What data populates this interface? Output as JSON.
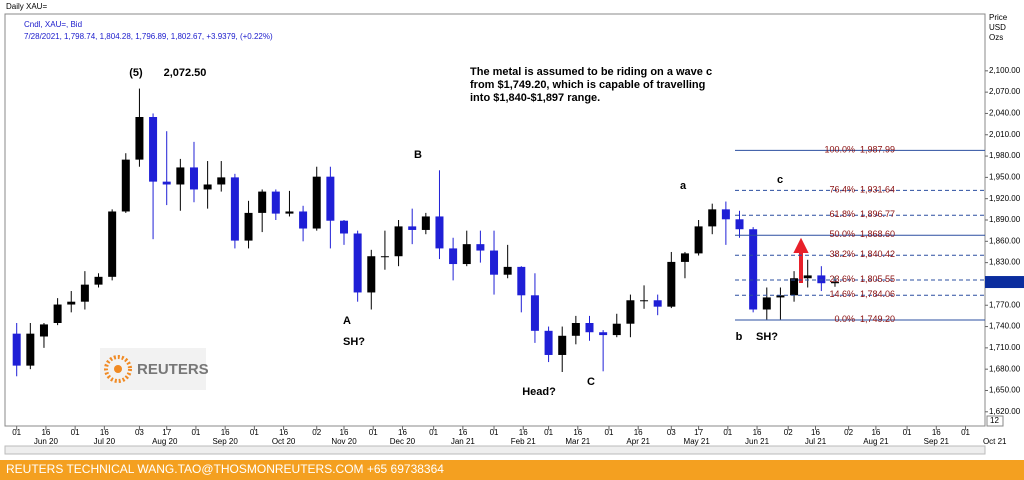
{
  "header": {
    "title": "Daily XAU=",
    "instrument": "Cndl, XAU=, Bid",
    "quote": "7/28/2021, 1,798.74, 1,804.28, 1,796.89, 1,802.67, +3.9379, (+0.22%)",
    "axis_title": [
      "Price",
      "USD",
      "Ozs"
    ],
    "axis_page": "12"
  },
  "footer": {
    "text": "REUTERS TECHNICAL  WANG.TAO@THOSMONREUTERS.COM  +65 69738364",
    "logo": "REUTERS"
  },
  "annotations": {
    "wave5": "(5)",
    "peak": "2,072.50",
    "B": "B",
    "A": "A",
    "sh1": "SH?",
    "head": "Head?",
    "C": "C",
    "a": "a",
    "c": "c",
    "b": "b",
    "sh2": "SH?",
    "note": [
      "The metal is assumed to be riding on a wave c",
      "from $1,749.20, which is capable of travelling",
      "into $1,840-$1,897 range."
    ]
  },
  "chart_data": {
    "type": "candlestick",
    "up_color": "#000000",
    "down_color": "#1f1fd6",
    "xlim": [
      "2020-05-26",
      "2021-10-11"
    ],
    "ylim": [
      1600,
      2180
    ],
    "yticks": [
      {
        "value": 1620,
        "label": "1,620.00"
      },
      {
        "value": 1650,
        "label": "1,650.00"
      },
      {
        "value": 1680,
        "label": "1,680.00"
      },
      {
        "value": 1710,
        "label": "1,710.00"
      },
      {
        "value": 1740,
        "label": "1,740.00"
      },
      {
        "value": 1770,
        "label": "1,770.00"
      },
      {
        "value": 1800,
        "label": "1,800.00"
      },
      {
        "value": 1830,
        "label": "1,830.00"
      },
      {
        "value": 1860,
        "label": "1,860.00"
      },
      {
        "value": 1890,
        "label": "1,890.00"
      },
      {
        "value": 1920,
        "label": "1,920.00"
      },
      {
        "value": 1950,
        "label": "1,950.00"
      },
      {
        "value": 1980,
        "label": "1,980.00"
      },
      {
        "value": 2010,
        "label": "2,010.00"
      },
      {
        "value": 2040,
        "label": "2,040.00"
      },
      {
        "value": 2070,
        "label": "2,070.00"
      },
      {
        "value": 2100,
        "label": "2,100.00"
      }
    ],
    "xticks": [
      {
        "value": "2020-06-01",
        "label": "01"
      },
      {
        "value": "2020-06-16",
        "label": "16"
      },
      {
        "value": "2020-07-01",
        "label": "01"
      },
      {
        "value": "2020-07-16",
        "label": "16"
      },
      {
        "value": "2020-08-03",
        "label": "03"
      },
      {
        "value": "2020-08-17",
        "label": "17"
      },
      {
        "value": "2020-09-01",
        "label": "01"
      },
      {
        "value": "2020-09-16",
        "label": "16"
      },
      {
        "value": "2020-10-01",
        "label": "01"
      },
      {
        "value": "2020-10-16",
        "label": "16"
      },
      {
        "value": "2020-11-02",
        "label": "02"
      },
      {
        "value": "2020-11-16",
        "label": "16"
      },
      {
        "value": "2020-12-01",
        "label": "01"
      },
      {
        "value": "2020-12-16",
        "label": "16"
      },
      {
        "value": "2021-01-01",
        "label": "01"
      },
      {
        "value": "2021-01-16",
        "label": "16"
      },
      {
        "value": "2021-02-01",
        "label": "01"
      },
      {
        "value": "2021-02-16",
        "label": "16"
      },
      {
        "value": "2021-03-01",
        "label": "01"
      },
      {
        "value": "2021-03-16",
        "label": "16"
      },
      {
        "value": "2021-04-01",
        "label": "01"
      },
      {
        "value": "2021-04-16",
        "label": "16"
      },
      {
        "value": "2021-05-03",
        "label": "03"
      },
      {
        "value": "2021-05-17",
        "label": "17"
      },
      {
        "value": "2021-06-01",
        "label": "01"
      },
      {
        "value": "2021-06-16",
        "label": "16"
      },
      {
        "value": "2021-07-02",
        "label": "02"
      },
      {
        "value": "2021-07-16",
        "label": "16"
      },
      {
        "value": "2021-08-02",
        "label": "02"
      },
      {
        "value": "2021-08-16",
        "label": "16"
      },
      {
        "value": "2021-09-01",
        "label": "01"
      },
      {
        "value": "2021-09-16",
        "label": "16"
      },
      {
        "value": "2021-10-01",
        "label": "01"
      }
    ],
    "xmonths": [
      {
        "value": "2020-06-16",
        "label": "Jun 20"
      },
      {
        "value": "2020-07-16",
        "label": "Jul 20"
      },
      {
        "value": "2020-08-16",
        "label": "Aug 20"
      },
      {
        "value": "2020-09-16",
        "label": "Sep 20"
      },
      {
        "value": "2020-10-16",
        "label": "Oct 20"
      },
      {
        "value": "2020-11-16",
        "label": "Nov 20"
      },
      {
        "value": "2020-12-16",
        "label": "Dec 20"
      },
      {
        "value": "2021-01-16",
        "label": "Jan 21"
      },
      {
        "value": "2021-02-16",
        "label": "Feb 21"
      },
      {
        "value": "2021-03-16",
        "label": "Mar 21"
      },
      {
        "value": "2021-04-16",
        "label": "Apr 21"
      },
      {
        "value": "2021-05-16",
        "label": "May 21"
      },
      {
        "value": "2021-06-16",
        "label": "Jun 21"
      },
      {
        "value": "2021-07-16",
        "label": "Jul 21"
      },
      {
        "value": "2021-08-16",
        "label": "Aug 21"
      },
      {
        "value": "2021-09-16",
        "label": "Sep 21"
      },
      {
        "value": "2021-10-16",
        "label": "Oct 21"
      }
    ],
    "x": [
      "2020-06-01",
      "2020-06-08",
      "2020-06-15",
      "2020-06-22",
      "2020-06-29",
      "2020-07-06",
      "2020-07-13",
      "2020-07-20",
      "2020-07-27",
      "2020-08-03",
      "2020-08-10",
      "2020-08-17",
      "2020-08-24",
      "2020-08-31",
      "2020-09-07",
      "2020-09-14",
      "2020-09-21",
      "2020-09-28",
      "2020-10-05",
      "2020-10-12",
      "2020-10-19",
      "2020-10-26",
      "2020-11-02",
      "2020-11-09",
      "2020-11-16",
      "2020-11-23",
      "2020-11-30",
      "2020-12-07",
      "2020-12-14",
      "2020-12-21",
      "2020-12-28",
      "2021-01-04",
      "2021-01-11",
      "2021-01-18",
      "2021-01-25",
      "2021-02-01",
      "2021-02-08",
      "2021-02-15",
      "2021-02-22",
      "2021-03-01",
      "2021-03-08",
      "2021-03-15",
      "2021-03-22",
      "2021-03-29",
      "2021-04-05",
      "2021-04-12",
      "2021-04-19",
      "2021-04-26",
      "2021-05-03",
      "2021-05-10",
      "2021-05-17",
      "2021-05-24",
      "2021-05-31",
      "2021-06-07",
      "2021-06-14",
      "2021-06-21",
      "2021-06-28",
      "2021-07-05",
      "2021-07-12",
      "2021-07-19",
      "2021-07-26"
    ],
    "open": [
      1730,
      1685,
      1726,
      1745,
      1771,
      1775,
      1799,
      1810,
      1902,
      1975,
      2035,
      1944,
      1940,
      1964,
      1933,
      1940,
      1950,
      1861,
      1900,
      1930,
      1899,
      1902,
      1878,
      1951,
      1889,
      1871,
      1788,
      1839,
      1839,
      1881,
      1876,
      1895,
      1850,
      1828,
      1856,
      1847,
      1813,
      1824,
      1784,
      1734,
      1700,
      1727,
      1745,
      1732,
      1728,
      1744,
      1777,
      1777,
      1768,
      1831,
      1843,
      1881,
      1905,
      1891,
      1877,
      1764,
      1781,
      1784,
      1808,
      1812,
      1801
    ],
    "high": [
      1745,
      1745,
      1745,
      1780,
      1790,
      1818,
      1815,
      1905,
      1984,
      2075,
      2040,
      2015,
      1976,
      2000,
      1973,
      1973,
      1955,
      1917,
      1933,
      1933,
      1931,
      1910,
      1965,
      1965,
      1890,
      1875,
      1848,
      1875,
      1890,
      1906,
      1900,
      1960,
      1865,
      1875,
      1875,
      1875,
      1855,
      1825,
      1815,
      1740,
      1740,
      1755,
      1755,
      1735,
      1758,
      1785,
      1798,
      1785,
      1845,
      1845,
      1890,
      1913,
      1916,
      1903,
      1880,
      1795,
      1795,
      1818,
      1834,
      1825,
      1810
    ],
    "low": [
      1670,
      1680,
      1710,
      1742,
      1760,
      1764,
      1795,
      1805,
      1900,
      1965,
      1863,
      1911,
      1903,
      1915,
      1906,
      1930,
      1850,
      1850,
      1873,
      1890,
      1895,
      1860,
      1875,
      1850,
      1855,
      1775,
      1764,
      1820,
      1825,
      1856,
      1870,
      1835,
      1805,
      1825,
      1830,
      1785,
      1808,
      1760,
      1717,
      1690,
      1676,
      1715,
      1720,
      1677,
      1725,
      1725,
      1765,
      1756,
      1766,
      1808,
      1840,
      1870,
      1855,
      1865,
      1760,
      1750,
      1750,
      1775,
      1795,
      1790,
      1796
    ],
    "close": [
      1685,
      1730,
      1743,
      1771,
      1775,
      1799,
      1810,
      1902,
      1975,
      2035,
      1944,
      1940,
      1964,
      1933,
      1940,
      1950,
      1861,
      1900,
      1930,
      1899,
      1902,
      1878,
      1951,
      1889,
      1871,
      1788,
      1839,
      1839,
      1881,
      1876,
      1895,
      1850,
      1828,
      1856,
      1847,
      1813,
      1824,
      1784,
      1734,
      1700,
      1727,
      1745,
      1732,
      1728,
      1744,
      1777,
      1777,
      1768,
      1831,
      1843,
      1881,
      1905,
      1891,
      1877,
      1764,
      1781,
      1784,
      1808,
      1812,
      1801,
      1802.67
    ],
    "levels": [
      {
        "name": "100.0%",
        "value": 1987.99,
        "label": "1,987.99",
        "style": "solid"
      },
      {
        "name": "76.4%",
        "value": 1931.64,
        "label": "1,931.64",
        "style": "dashed"
      },
      {
        "name": "61.8%",
        "value": 1896.77,
        "label": "1,896.77",
        "style": "dashed"
      },
      {
        "name": "50.0%",
        "value": 1868.6,
        "label": "1,868.60",
        "style": "solid"
      },
      {
        "name": "38.2%",
        "value": 1840.42,
        "label": "1,840.42",
        "style": "dashed"
      },
      {
        "name": "23.6%",
        "value": 1805.55,
        "label": "1,805.55",
        "style": "dashed"
      },
      {
        "name": "14.6%",
        "value": 1784.06,
        "label": "1,784.06",
        "style": "dashed"
      },
      {
        "name": "0.0%",
        "value": 1749.2,
        "label": "1,749.20",
        "style": "solid"
      }
    ],
    "level_color": "#2b4fa0",
    "level_text_color": "#8b1010"
  }
}
